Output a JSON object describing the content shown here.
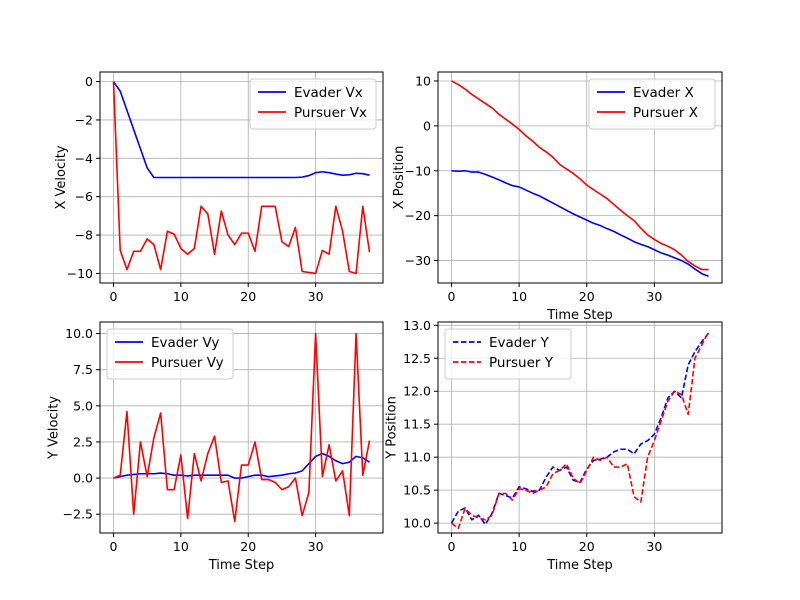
{
  "chart_data": [
    {
      "type": "line",
      "xlabel": "",
      "ylabel": "X Velocity",
      "xlim": [
        -2,
        40
      ],
      "ylim": [
        -10.5,
        0.5
      ],
      "xticks": [
        0,
        10,
        20,
        30
      ],
      "yticks": [
        0,
        -2,
        -4,
        -6,
        -8,
        -10
      ],
      "ytick_labels": [
        "0",
        "−2",
        "−4",
        "−6",
        "−8",
        "−10"
      ],
      "xtick_labels": [
        "0",
        "10",
        "20",
        "30"
      ],
      "grid": true,
      "legend_position": "upper-right",
      "series": [
        {
          "name": "Evader Vx",
          "color": "#0000ff",
          "dashed": false,
          "x": [
            0,
            1,
            2,
            3,
            4,
            5,
            6,
            7,
            8,
            9,
            10,
            11,
            12,
            13,
            14,
            15,
            16,
            17,
            18,
            19,
            20,
            21,
            22,
            23,
            24,
            25,
            26,
            27,
            28,
            29,
            30,
            31,
            32,
            33,
            34,
            35,
            36,
            37,
            38
          ],
          "y": [
            0,
            -0.5,
            -1.5,
            -2.5,
            -3.5,
            -4.5,
            -5.0,
            -5.0,
            -5.0,
            -5.0,
            -5.0,
            -5.0,
            -5.0,
            -5.0,
            -5.0,
            -5.0,
            -5.0,
            -5.0,
            -5.0,
            -5.0,
            -5.0,
            -5.0,
            -5.0,
            -5.0,
            -5.0,
            -5.0,
            -5.0,
            -5.0,
            -4.98,
            -4.9,
            -4.75,
            -4.7,
            -4.75,
            -4.82,
            -4.88,
            -4.86,
            -4.78,
            -4.8,
            -4.88
          ]
        },
        {
          "name": "Pursuer Vx",
          "color": "#ff0000",
          "dashed": false,
          "x": [
            0,
            1,
            2,
            3,
            4,
            5,
            6,
            7,
            8,
            9,
            10,
            11,
            12,
            13,
            14,
            15,
            16,
            17,
            18,
            19,
            20,
            21,
            22,
            23,
            24,
            25,
            26,
            27,
            28,
            29,
            30,
            31,
            32,
            33,
            34,
            35,
            36,
            37,
            38
          ],
          "y": [
            0,
            -8.8,
            -9.8,
            -8.85,
            -8.85,
            -8.2,
            -8.5,
            -9.8,
            -7.8,
            -7.95,
            -8.7,
            -9.0,
            -8.7,
            -6.5,
            -6.9,
            -9.0,
            -6.75,
            -8.0,
            -8.5,
            -7.9,
            -7.9,
            -8.85,
            -6.5,
            -6.5,
            -6.5,
            -8.35,
            -8.6,
            -7.6,
            -9.9,
            -9.95,
            -10.0,
            -8.8,
            -9.0,
            -6.5,
            -7.8,
            -9.9,
            -10.0,
            -6.5,
            -8.9
          ]
        }
      ]
    },
    {
      "type": "line",
      "xlabel": "Time Step",
      "ylabel": "X Position",
      "xlim": [
        -2,
        40
      ],
      "ylim": [
        -35,
        12
      ],
      "xticks": [
        0,
        10,
        20,
        30
      ],
      "yticks": [
        10,
        0,
        -10,
        -20,
        -30
      ],
      "ytick_labels": [
        "10",
        "0",
        "−10",
        "−20",
        "−30"
      ],
      "xtick_labels": [
        "0",
        "10",
        "20",
        "30"
      ],
      "grid": true,
      "legend_position": "upper-right",
      "series": [
        {
          "name": "Evader X",
          "color": "#0000ff",
          "dashed": false,
          "x": [
            0,
            1,
            2,
            3,
            4,
            5,
            6,
            7,
            8,
            9,
            10,
            11,
            12,
            13,
            14,
            15,
            16,
            17,
            18,
            19,
            20,
            21,
            22,
            23,
            24,
            25,
            26,
            27,
            28,
            29,
            30,
            31,
            32,
            33,
            34,
            35,
            36,
            37,
            38
          ],
          "y": [
            -10.0,
            -10.1,
            -10.0,
            -10.3,
            -10.3,
            -10.8,
            -11.4,
            -12.0,
            -12.7,
            -13.3,
            -13.6,
            -14.3,
            -15.0,
            -15.6,
            -16.4,
            -17.2,
            -18.0,
            -18.8,
            -19.6,
            -20.3,
            -21.0,
            -21.7,
            -22.2,
            -22.9,
            -23.5,
            -24.3,
            -25.0,
            -25.8,
            -26.4,
            -26.9,
            -27.6,
            -28.3,
            -28.8,
            -29.4,
            -30.0,
            -30.8,
            -31.9,
            -32.9,
            -33.5
          ]
        },
        {
          "name": "Pursuer X",
          "color": "#ff0000",
          "dashed": false,
          "x": [
            0,
            1,
            2,
            3,
            4,
            5,
            6,
            7,
            8,
            9,
            10,
            11,
            12,
            13,
            14,
            15,
            16,
            17,
            18,
            19,
            20,
            21,
            22,
            23,
            24,
            25,
            26,
            27,
            28,
            29,
            30,
            31,
            32,
            33,
            34,
            35,
            36,
            37,
            38
          ],
          "y": [
            10.0,
            9.2,
            8.2,
            7.0,
            6.0,
            5.0,
            4.0,
            2.6,
            1.5,
            0.4,
            -0.8,
            -2.2,
            -3.4,
            -4.8,
            -5.8,
            -7.0,
            -8.6,
            -9.6,
            -10.6,
            -11.8,
            -13.2,
            -14.2,
            -15.2,
            -16.2,
            -17.5,
            -18.8,
            -20.0,
            -21.1,
            -22.8,
            -24.3,
            -25.3,
            -26.2,
            -26.8,
            -27.6,
            -28.8,
            -30.2,
            -31.2,
            -32.0,
            -32.0
          ]
        }
      ]
    },
    {
      "type": "line",
      "xlabel": "Time Step",
      "ylabel": "Y Velocity",
      "xlim": [
        -2,
        40
      ],
      "ylim": [
        -3.8,
        10.8
      ],
      "xticks": [
        0,
        10,
        20,
        30
      ],
      "yticks": [
        10.0,
        7.5,
        5.0,
        2.5,
        0.0,
        -2.5
      ],
      "ytick_labels": [
        "10.0",
        "7.5",
        "5.0",
        "2.5",
        "0.0",
        "−2.5"
      ],
      "xtick_labels": [
        "0",
        "10",
        "20",
        "30"
      ],
      "grid": true,
      "legend_position": "upper-left",
      "series": [
        {
          "name": "Evader Vy",
          "color": "#0000ff",
          "dashed": false,
          "x": [
            0,
            1,
            2,
            3,
            4,
            5,
            6,
            7,
            8,
            9,
            10,
            11,
            12,
            13,
            14,
            15,
            16,
            17,
            18,
            19,
            20,
            21,
            22,
            23,
            24,
            25,
            26,
            27,
            28,
            29,
            30,
            31,
            32,
            33,
            34,
            35,
            36,
            37,
            38
          ],
          "y": [
            0.0,
            0.1,
            0.2,
            0.25,
            0.3,
            0.3,
            0.3,
            0.35,
            0.3,
            0.2,
            0.2,
            0.15,
            0.2,
            0.2,
            0.2,
            0.2,
            0.2,
            0.2,
            0.0,
            0.0,
            0.1,
            0.2,
            0.2,
            0.1,
            0.15,
            0.2,
            0.3,
            0.35,
            0.5,
            1.0,
            1.5,
            1.7,
            1.5,
            1.2,
            1.0,
            1.1,
            1.5,
            1.4,
            1.1
          ]
        },
        {
          "name": "Pursuer Vy",
          "color": "#ff0000",
          "dashed": false,
          "x": [
            0,
            1,
            2,
            3,
            4,
            5,
            6,
            7,
            8,
            9,
            10,
            11,
            12,
            13,
            14,
            15,
            16,
            17,
            18,
            19,
            20,
            21,
            22,
            23,
            24,
            25,
            26,
            27,
            28,
            29,
            30,
            31,
            32,
            33,
            34,
            35,
            36,
            37,
            38
          ],
          "y": [
            0.0,
            0.2,
            4.6,
            -2.5,
            2.5,
            0.1,
            2.8,
            4.5,
            -0.8,
            -0.8,
            1.6,
            -2.8,
            1.7,
            -0.2,
            1.7,
            2.9,
            -0.3,
            -0.2,
            -3.0,
            0.9,
            0.9,
            2.5,
            -0.1,
            -0.1,
            -0.3,
            -0.8,
            -0.6,
            0.0,
            -2.6,
            -1.0,
            10.0,
            0.1,
            2.3,
            -0.2,
            0.5,
            -2.6,
            10.0,
            0.2,
            2.6
          ]
        }
      ]
    },
    {
      "type": "line",
      "xlabel": "Time Step",
      "ylabel": "Y Position",
      "xlim": [
        -2,
        40
      ],
      "ylim": [
        9.85,
        13.05
      ],
      "xticks": [
        0,
        10,
        20,
        30
      ],
      "yticks": [
        13.0,
        12.5,
        12.0,
        11.5,
        11.0,
        10.5,
        10.0
      ],
      "ytick_labels": [
        "13.0",
        "12.5",
        "12.0",
        "11.5",
        "11.0",
        "10.5",
        "10.0"
      ],
      "xtick_labels": [
        "0",
        "10",
        "20",
        "30"
      ],
      "grid": true,
      "legend_position": "upper-left",
      "series": [
        {
          "name": "Evader Y",
          "color": "#0000ff",
          "dashed": true,
          "x": [
            0,
            1,
            2,
            3,
            4,
            5,
            6,
            7,
            8,
            9,
            10,
            11,
            12,
            13,
            14,
            15,
            16,
            17,
            18,
            19,
            20,
            21,
            22,
            23,
            24,
            25,
            26,
            27,
            28,
            29,
            30,
            31,
            32,
            33,
            34,
            35,
            36,
            37,
            38
          ],
          "y": [
            10.0,
            10.18,
            10.23,
            10.05,
            10.12,
            9.98,
            10.15,
            10.45,
            10.42,
            10.38,
            10.55,
            10.52,
            10.48,
            10.5,
            10.7,
            10.85,
            10.8,
            10.85,
            10.65,
            10.62,
            10.82,
            10.95,
            10.97,
            11.0,
            11.08,
            11.12,
            11.12,
            11.05,
            11.2,
            11.25,
            11.35,
            11.6,
            11.9,
            12.0,
            11.9,
            12.4,
            12.6,
            12.75,
            12.88
          ]
        },
        {
          "name": "Pursuer Y",
          "color": "#ff0000",
          "dashed": true,
          "x": [
            0,
            1,
            2,
            3,
            4,
            5,
            6,
            7,
            8,
            9,
            10,
            11,
            12,
            13,
            14,
            15,
            16,
            17,
            18,
            19,
            20,
            21,
            22,
            23,
            24,
            25,
            26,
            27,
            28,
            29,
            30,
            31,
            32,
            33,
            34,
            35,
            36,
            37,
            38
          ],
          "y": [
            10.0,
            9.92,
            10.22,
            10.12,
            10.08,
            10.05,
            10.12,
            10.45,
            10.45,
            10.35,
            10.52,
            10.5,
            10.45,
            10.5,
            10.55,
            10.75,
            10.8,
            10.9,
            10.68,
            10.6,
            10.8,
            11.0,
            10.95,
            11.0,
            10.85,
            10.85,
            10.9,
            10.4,
            10.32,
            11.0,
            11.25,
            11.55,
            11.85,
            12.0,
            11.95,
            11.65,
            12.5,
            12.7,
            12.9
          ]
        }
      ]
    }
  ]
}
